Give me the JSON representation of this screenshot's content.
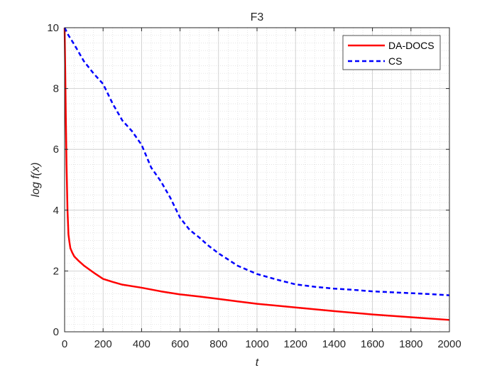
{
  "chart_data": {
    "type": "line",
    "title": "F3",
    "xlabel": "t",
    "ylabel": "log f(x)",
    "xlim": [
      0,
      2000
    ],
    "ylim": [
      0,
      10
    ],
    "xticks": [
      "0",
      "200",
      "400",
      "600",
      "800",
      "1000",
      "1200",
      "1400",
      "1600",
      "1800",
      "2000"
    ],
    "yticks": [
      "0",
      "2",
      "4",
      "6",
      "8",
      "10"
    ],
    "grid": true,
    "legend_position": "top-right",
    "series": [
      {
        "name": "DA-DOCS",
        "color": "#ff0000",
        "style": "solid",
        "x": [
          0,
          3,
          6,
          10,
          15,
          20,
          25,
          30,
          40,
          50,
          75,
          100,
          150,
          200,
          250,
          300,
          400,
          500,
          600,
          700,
          800,
          900,
          1000,
          1200,
          1400,
          1600,
          1800,
          2000
        ],
        "y": [
          10,
          8.7,
          7.2,
          5.5,
          4.0,
          3.2,
          2.95,
          2.75,
          2.6,
          2.48,
          2.32,
          2.18,
          1.95,
          1.74,
          1.64,
          1.55,
          1.45,
          1.33,
          1.23,
          1.16,
          1.08,
          1.0,
          0.92,
          0.8,
          0.68,
          0.57,
          0.48,
          0.39
        ]
      },
      {
        "name": "CS",
        "color": "#0000ff",
        "style": "dashed",
        "x": [
          0,
          20,
          50,
          100,
          150,
          200,
          250,
          300,
          350,
          400,
          450,
          500,
          550,
          600,
          650,
          700,
          750,
          800,
          900,
          1000,
          1100,
          1200,
          1300,
          1400,
          1500,
          1600,
          1700,
          1800,
          1900,
          2000
        ],
        "y": [
          10,
          9.75,
          9.45,
          8.9,
          8.5,
          8.15,
          7.5,
          6.95,
          6.6,
          6.15,
          5.4,
          4.95,
          4.4,
          3.75,
          3.35,
          3.1,
          2.82,
          2.58,
          2.17,
          1.9,
          1.72,
          1.56,
          1.48,
          1.42,
          1.38,
          1.33,
          1.3,
          1.27,
          1.24,
          1.2
        ]
      }
    ]
  }
}
